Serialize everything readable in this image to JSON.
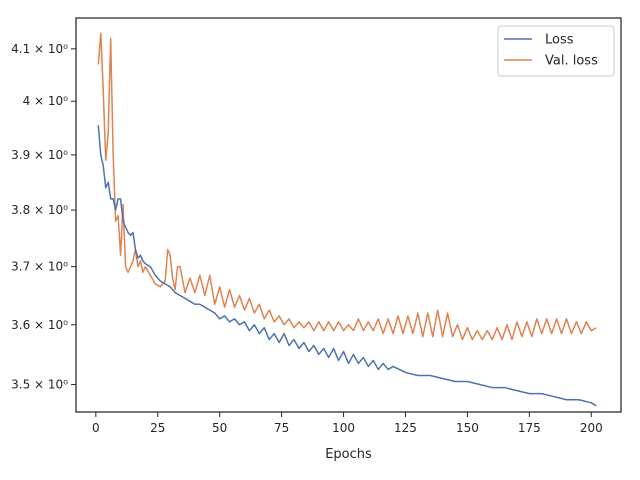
{
  "chart_data": {
    "type": "line",
    "xlabel": "Epochs",
    "ylabel": "",
    "yscale": "log",
    "xlim": [
      -8,
      212
    ],
    "ylim": [
      3.455,
      4.16
    ],
    "grid": false,
    "legend_position": "top-right",
    "x_ticks": [
      0,
      25,
      50,
      75,
      100,
      125,
      150,
      175,
      200
    ],
    "x_tick_labels": [
      "0",
      "25",
      "50",
      "75",
      "100",
      "125",
      "150",
      "175",
      "200"
    ],
    "y_ticks": [
      3.5,
      3.6,
      3.7,
      3.8,
      3.9,
      4.0,
      4.1
    ],
    "y_tick_labels": [
      "3.5 × 10⁰",
      "3.6 × 10⁰",
      "3.7 × 10⁰",
      "3.8 × 10⁰",
      "3.9 × 10⁰",
      "4 × 10⁰",
      "4.1 × 10⁰"
    ],
    "series": [
      {
        "name": "Loss",
        "color": "#4c72b0",
        "x": [
          1,
          2,
          3,
          4,
          5,
          6,
          7,
          8,
          9,
          10,
          11,
          12,
          13,
          14,
          15,
          16,
          17,
          18,
          19,
          20,
          22,
          24,
          26,
          28,
          30,
          32,
          34,
          36,
          38,
          40,
          42,
          44,
          46,
          48,
          50,
          52,
          54,
          56,
          58,
          60,
          62,
          64,
          66,
          68,
          70,
          72,
          74,
          76,
          78,
          80,
          82,
          84,
          86,
          88,
          90,
          92,
          94,
          96,
          98,
          100,
          102,
          104,
          106,
          108,
          110,
          112,
          114,
          116,
          118,
          120,
          125,
          130,
          135,
          140,
          145,
          150,
          155,
          160,
          165,
          170,
          175,
          180,
          185,
          190,
          195,
          200,
          202
        ],
        "y": [
          3.955,
          3.9,
          3.88,
          3.84,
          3.85,
          3.82,
          3.82,
          3.8,
          3.82,
          3.82,
          3.78,
          3.77,
          3.76,
          3.755,
          3.76,
          3.73,
          3.715,
          3.72,
          3.71,
          3.705,
          3.7,
          3.685,
          3.675,
          3.67,
          3.665,
          3.655,
          3.65,
          3.645,
          3.64,
          3.635,
          3.635,
          3.63,
          3.625,
          3.62,
          3.61,
          3.615,
          3.605,
          3.61,
          3.6,
          3.605,
          3.59,
          3.6,
          3.585,
          3.595,
          3.575,
          3.585,
          3.57,
          3.585,
          3.565,
          3.575,
          3.56,
          3.57,
          3.555,
          3.565,
          3.55,
          3.56,
          3.545,
          3.56,
          3.54,
          3.555,
          3.535,
          3.55,
          3.535,
          3.545,
          3.53,
          3.54,
          3.525,
          3.535,
          3.525,
          3.53,
          3.52,
          3.515,
          3.515,
          3.51,
          3.505,
          3.505,
          3.5,
          3.495,
          3.495,
          3.49,
          3.485,
          3.485,
          3.48,
          3.475,
          3.475,
          3.47,
          3.465
        ]
      },
      {
        "name": "Val. loss",
        "color": "#dd8452",
        "x": [
          1,
          2,
          3,
          4,
          5,
          6,
          7,
          8,
          9,
          10,
          11,
          12,
          13,
          14,
          15,
          16,
          17,
          18,
          19,
          20,
          22,
          24,
          26,
          28,
          29,
          30,
          31,
          32,
          33,
          34,
          36,
          38,
          40,
          42,
          44,
          46,
          48,
          50,
          52,
          54,
          56,
          58,
          60,
          62,
          64,
          66,
          68,
          70,
          72,
          74,
          76,
          78,
          80,
          82,
          84,
          86,
          88,
          90,
          92,
          94,
          96,
          98,
          100,
          102,
          104,
          106,
          108,
          110,
          112,
          114,
          116,
          118,
          120,
          122,
          124,
          126,
          128,
          130,
          132,
          134,
          136,
          138,
          140,
          142,
          144,
          146,
          148,
          150,
          152,
          154,
          156,
          158,
          160,
          162,
          164,
          166,
          168,
          170,
          172,
          174,
          176,
          178,
          180,
          182,
          184,
          186,
          188,
          190,
          192,
          194,
          196,
          198,
          200,
          202
        ],
        "y": [
          4.07,
          4.13,
          4.02,
          3.89,
          3.94,
          4.12,
          3.9,
          3.78,
          3.79,
          3.72,
          3.81,
          3.7,
          3.69,
          3.7,
          3.71,
          3.73,
          3.7,
          3.71,
          3.69,
          3.7,
          3.685,
          3.67,
          3.665,
          3.675,
          3.73,
          3.72,
          3.68,
          3.66,
          3.7,
          3.7,
          3.655,
          3.68,
          3.655,
          3.685,
          3.65,
          3.685,
          3.635,
          3.665,
          3.63,
          3.66,
          3.63,
          3.65,
          3.625,
          3.645,
          3.62,
          3.635,
          3.61,
          3.625,
          3.605,
          3.615,
          3.6,
          3.61,
          3.595,
          3.605,
          3.595,
          3.605,
          3.59,
          3.605,
          3.59,
          3.605,
          3.59,
          3.605,
          3.59,
          3.6,
          3.59,
          3.61,
          3.59,
          3.605,
          3.59,
          3.61,
          3.585,
          3.61,
          3.585,
          3.615,
          3.585,
          3.615,
          3.585,
          3.62,
          3.58,
          3.62,
          3.58,
          3.625,
          3.58,
          3.62,
          3.58,
          3.6,
          3.575,
          3.595,
          3.575,
          3.59,
          3.575,
          3.59,
          3.575,
          3.595,
          3.575,
          3.6,
          3.575,
          3.605,
          3.58,
          3.605,
          3.58,
          3.61,
          3.585,
          3.61,
          3.585,
          3.61,
          3.585,
          3.61,
          3.585,
          3.605,
          3.585,
          3.605,
          3.59,
          3.595
        ]
      }
    ]
  }
}
